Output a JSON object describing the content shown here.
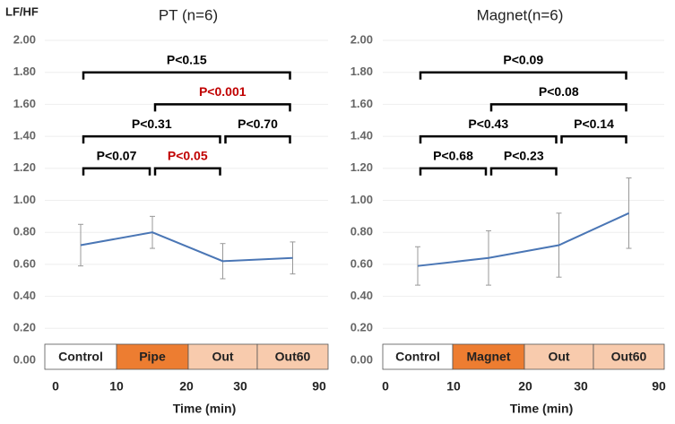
{
  "chart_data": [
    {
      "type": "line",
      "title": "PT (n=6)",
      "ylabel": "LF/HF",
      "xlabel": "Time (min)",
      "categories": [
        "Control",
        "Pipe",
        "Out",
        "Out60"
      ],
      "category_colors": [
        "#ffffff",
        "#ed7d31",
        "#f8cbad",
        "#f8cbad"
      ],
      "xticks": [
        0,
        10,
        20,
        30,
        90
      ],
      "series": [
        {
          "color": "#4a76b5",
          "values": [
            0.72,
            0.8,
            0.62,
            0.64
          ],
          "errors": [
            0.13,
            0.1,
            0.11,
            0.1
          ]
        }
      ],
      "ylim": [
        0,
        2
      ],
      "yticks": [
        {
          "value": 0,
          "label": "0.00"
        },
        {
          "value": 0.2,
          "label": "0.20"
        },
        {
          "value": 0.4,
          "label": "0.40"
        },
        {
          "value": 0.6,
          "label": "0.60"
        },
        {
          "value": 0.8,
          "label": "0.80"
        },
        {
          "value": 1,
          "label": "1.00"
        },
        {
          "value": 1.2,
          "label": "1.20"
        },
        {
          "value": 1.4,
          "label": "1.40"
        },
        {
          "value": 1.6,
          "label": "1.60"
        },
        {
          "value": 1.8,
          "label": "1.80"
        },
        {
          "value": 2,
          "label": "2.00"
        }
      ],
      "grid": true,
      "annotations": [
        {
          "label": "P<0.07",
          "from": 0,
          "to": 1,
          "color": "#000000"
        },
        {
          "label": "P<0.05",
          "from": 1,
          "to": 2,
          "color": "#c00000"
        },
        {
          "label": "P<0.31",
          "from": 0,
          "to": 2,
          "color": "#000000"
        },
        {
          "label": "P<0.70",
          "from": 2,
          "to": 3,
          "color": "#000000"
        },
        {
          "label": "P<0.001",
          "from": 1,
          "to": 3,
          "color": "#c00000"
        },
        {
          "label": "P<0.15",
          "from": 0,
          "to": 3,
          "color": "#000000"
        }
      ]
    },
    {
      "type": "line",
      "title": "Magnet(n=6)",
      "xlabel": "Time (min)",
      "categories": [
        "Control",
        "Magnet",
        "Out",
        "Out60"
      ],
      "category_colors": [
        "#ffffff",
        "#ed7d31",
        "#f8cbad",
        "#f8cbad"
      ],
      "xticks": [
        0,
        10,
        20,
        30,
        90
      ],
      "series": [
        {
          "color": "#4a76b5",
          "values": [
            0.59,
            0.64,
            0.72,
            0.92
          ],
          "errors": [
            0.12,
            0.17,
            0.2,
            0.22
          ]
        }
      ],
      "ylim": [
        0,
        2
      ],
      "yticks": [
        {
          "value": 0,
          "label": "0.00"
        },
        {
          "value": 0.2,
          "label": "0.20"
        },
        {
          "value": 0.4,
          "label": "0.40"
        },
        {
          "value": 0.6,
          "label": "0.60"
        },
        {
          "value": 0.8,
          "label": "0.80"
        },
        {
          "value": 1,
          "label": "1.00"
        },
        {
          "value": 1.2,
          "label": "1.20"
        },
        {
          "value": 1.4,
          "label": "1.40"
        },
        {
          "value": 1.6,
          "label": "1.60"
        },
        {
          "value": 1.8,
          "label": "1.80"
        },
        {
          "value": 2,
          "label": "2.00"
        }
      ],
      "grid": true,
      "annotations": [
        {
          "label": "P<0.68",
          "from": 0,
          "to": 1,
          "color": "#000000"
        },
        {
          "label": "P<0.23",
          "from": 1,
          "to": 2,
          "color": "#000000"
        },
        {
          "label": "P<0.43",
          "from": 0,
          "to": 2,
          "color": "#000000"
        },
        {
          "label": "P<0.14",
          "from": 2,
          "to": 3,
          "color": "#000000"
        },
        {
          "label": "P<0.08",
          "from": 1,
          "to": 3,
          "color": "#000000"
        },
        {
          "label": "P<0.09",
          "from": 0,
          "to": 3,
          "color": "#000000"
        }
      ]
    }
  ]
}
